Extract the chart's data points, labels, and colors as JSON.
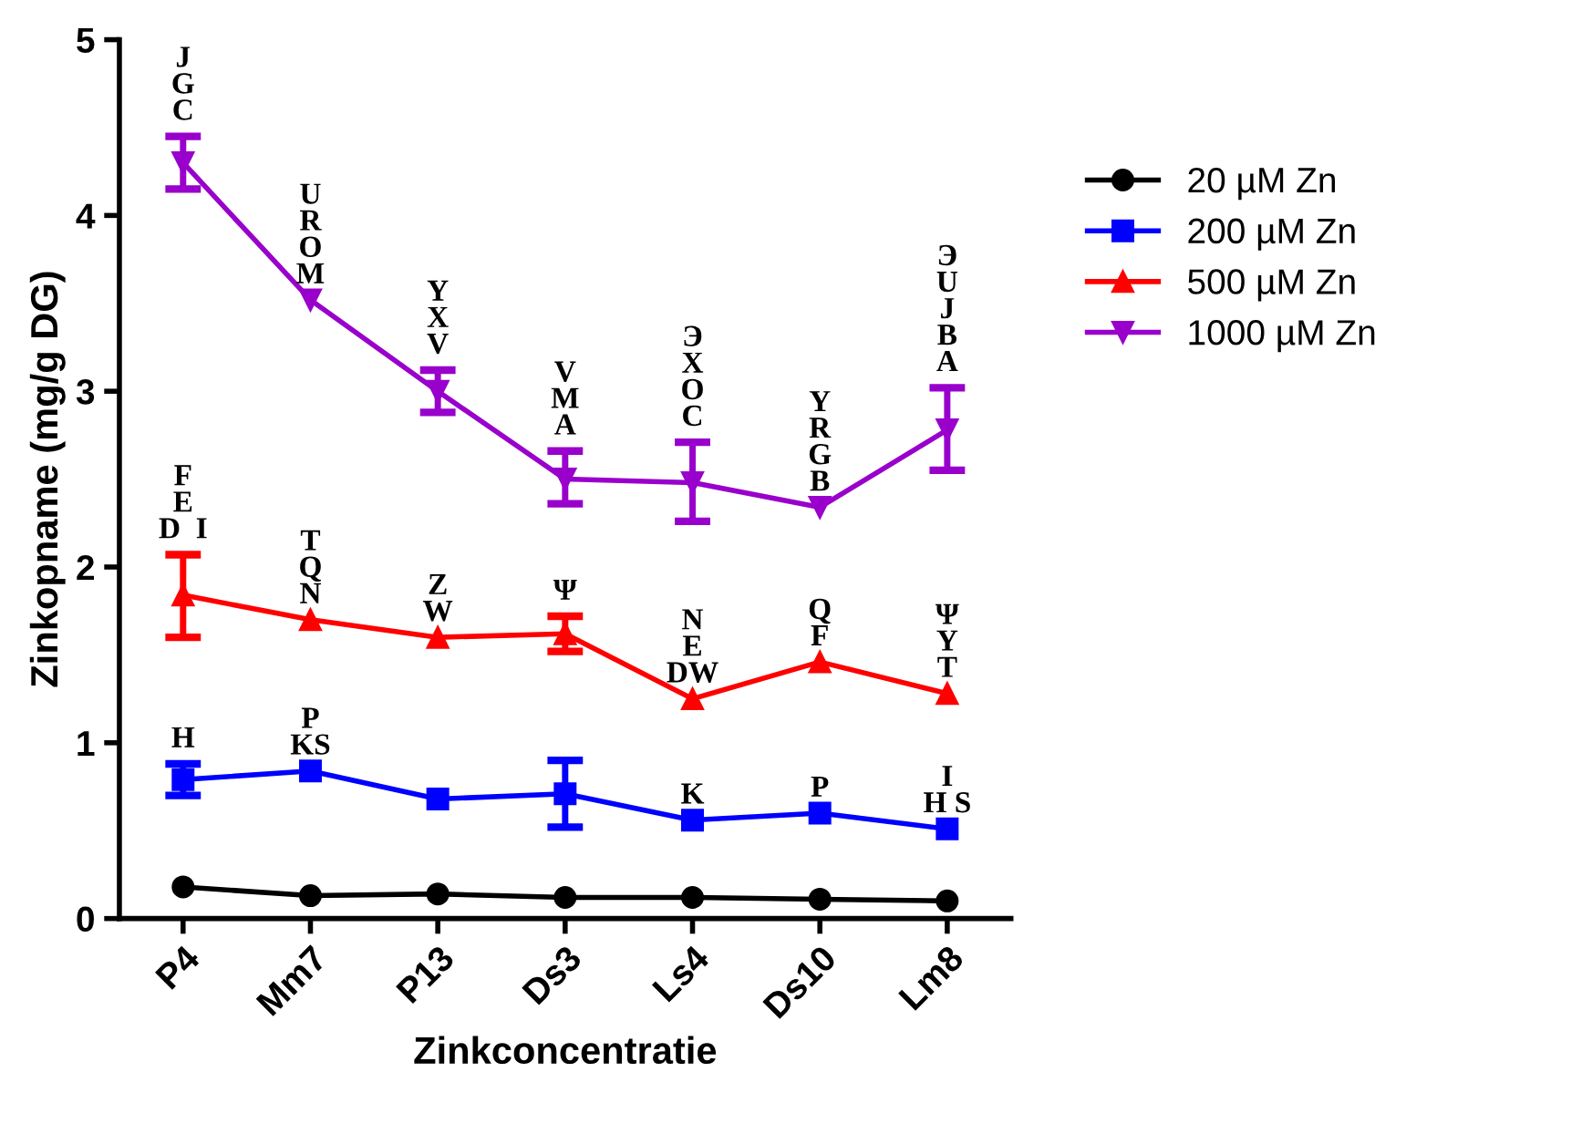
{
  "chart_data": {
    "type": "line",
    "xlabel": "Zinkconcentratie",
    "ylabel": "Zinkopname (mg/g DG)",
    "categories": [
      "P4",
      "Mm7",
      "P13",
      "Ds3",
      "Ls4",
      "Ds10",
      "Lm8"
    ],
    "series": [
      {
        "name": "20 µM Zn",
        "color": "#000000",
        "marker": "circle",
        "values": [
          0.18,
          0.13,
          0.14,
          0.12,
          0.12,
          0.11,
          0.1
        ]
      },
      {
        "name": "200 µM Zn",
        "color": "#0000ff",
        "marker": "square",
        "values": [
          0.79,
          0.84,
          0.68,
          0.71,
          0.56,
          0.6,
          0.51
        ],
        "errors": [
          [
            0.7,
            0.88
          ],
          null,
          null,
          [
            0.52,
            0.9
          ],
          null,
          null,
          null
        ]
      },
      {
        "name": "500 µM Zn",
        "color": "#ff0000",
        "marker": "triangle",
        "values": [
          1.84,
          1.7,
          1.6,
          1.62,
          1.25,
          1.46,
          1.28
        ],
        "errors": [
          [
            1.6,
            2.07
          ],
          null,
          null,
          [
            1.52,
            1.72
          ],
          null,
          null,
          null
        ]
      },
      {
        "name": "1000 µM Zn",
        "color": "#9900cc",
        "marker": "triangle-down",
        "values": [
          4.3,
          3.52,
          3.0,
          2.5,
          2.48,
          2.34,
          2.78
        ],
        "errors": [
          [
            4.15,
            4.45
          ],
          null,
          [
            2.88,
            3.12
          ],
          [
            2.36,
            2.66
          ],
          [
            2.26,
            2.71
          ],
          null,
          [
            2.55,
            3.02
          ]
        ]
      }
    ],
    "annotations": [
      {
        "text": "J\nG\nC",
        "x": "P4",
        "y": 4.45
      },
      {
        "text": "U\nR\nO\nM",
        "x": "Mm7",
        "y": 3.52
      },
      {
        "text": "Y\nX\nV",
        "x": "P13",
        "y": 3.12
      },
      {
        "text": "V\nM\nA",
        "x": "Ds3",
        "y": 2.66
      },
      {
        "text": "Э\nX\nO\nC",
        "x": "Ls4",
        "y": 2.71
      },
      {
        "text": "Y\nR\nG\nB",
        "x": "Ds10",
        "y": 2.34
      },
      {
        "text": "Э\nU\nJ\nB\nA",
        "x": "Lm8",
        "y": 3.02
      },
      {
        "text": "F\nE\nD  I",
        "x": "P4",
        "y": 2.07
      },
      {
        "text": "T\nQ\nN",
        "x": "Mm7",
        "y": 1.7
      },
      {
        "text": "Z\nW",
        "x": "P13",
        "y": 1.6
      },
      {
        "text": "Ψ",
        "x": "Ds3",
        "y": 1.72
      },
      {
        "text": "N\nE\nDW",
        "x": "Ls4",
        "y": 1.25
      },
      {
        "text": "Q\nF",
        "x": "Ds10",
        "y": 1.46
      },
      {
        "text": "Ψ\nY\nT",
        "x": "Lm8",
        "y": 1.28
      },
      {
        "text": "H",
        "x": "P4",
        "y": 0.88
      },
      {
        "text": "P\nKS",
        "x": "Mm7",
        "y": 0.84
      },
      {
        "text": "K",
        "x": "Ls4",
        "y": 0.56
      },
      {
        "text": "P",
        "x": "Ds10",
        "y": 0.6
      },
      {
        "text": "I\nH S",
        "x": "Lm8",
        "y": 0.51
      }
    ],
    "ylim": [
      0,
      5
    ],
    "yticks": [
      0,
      1,
      2,
      3,
      4,
      5
    ],
    "grid": false,
    "legend": "right",
    "line_style": "solid"
  }
}
